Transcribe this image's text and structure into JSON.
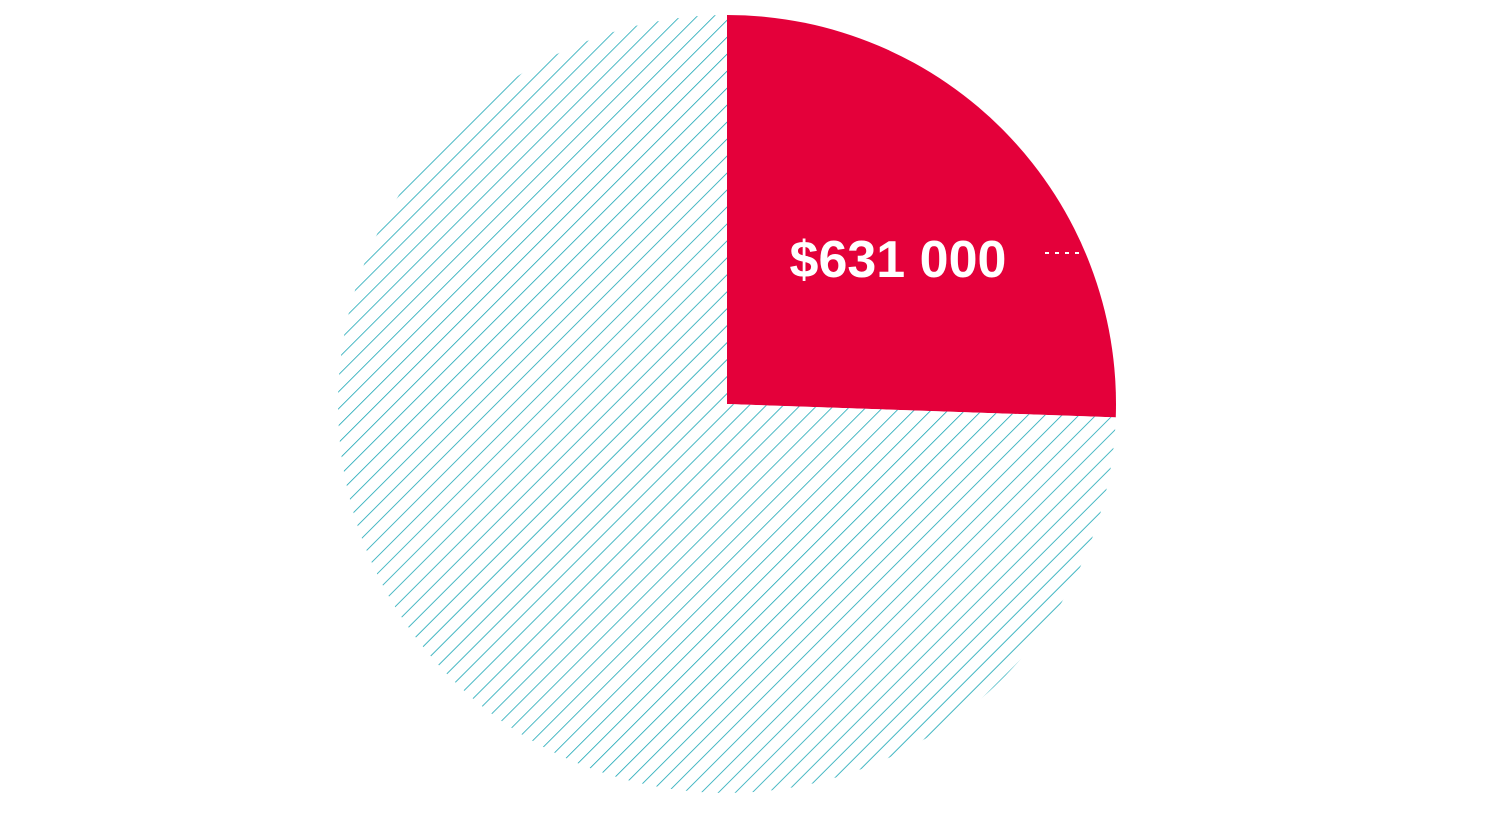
{
  "chart_data": {
    "type": "pie",
    "slices": [
      {
        "name": "",
        "value": 631000,
        "label": "$631 000",
        "color": "#e4003a",
        "fill": "solid"
      },
      {
        "name": "",
        "value": 1839000,
        "label": "",
        "color": "#1aa7b5",
        "fill": "hatched"
      }
    ],
    "start_angle_deg": 0,
    "direction": "clockwise",
    "title": "",
    "legend": "none"
  }
}
